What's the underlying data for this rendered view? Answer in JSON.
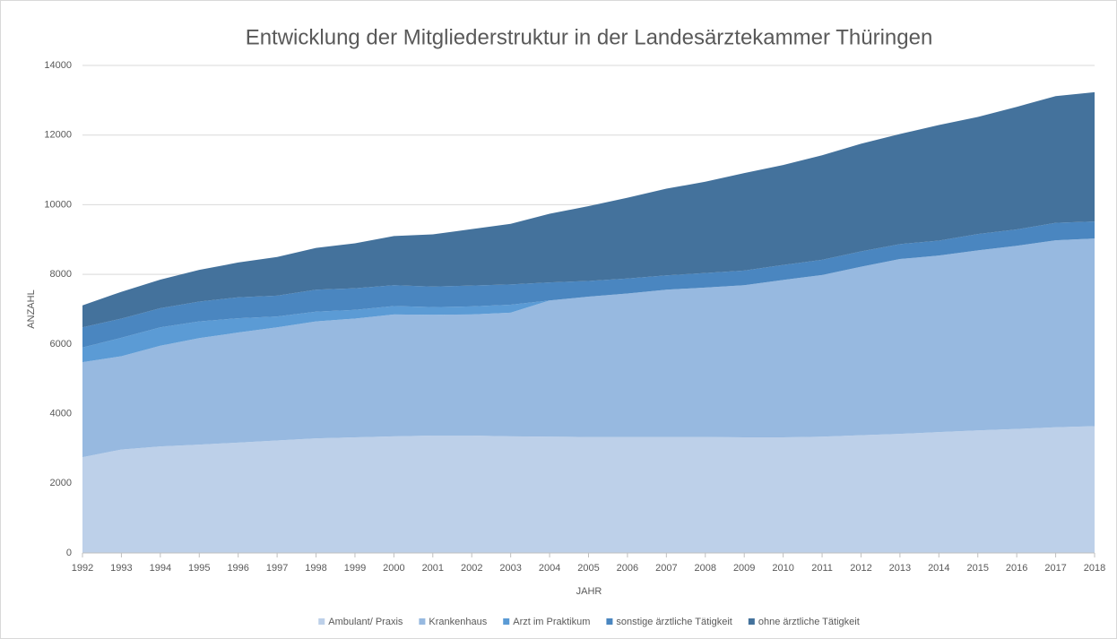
{
  "chart_data": {
    "type": "stacked-area",
    "title": "Entwicklung der Mitgliederstruktur in der Landesärztekammer Thüringen",
    "x_label": "JAHR",
    "y_label": "ANZAHL",
    "categories": [
      "1992",
      "1993",
      "1994",
      "1995",
      "1996",
      "1997",
      "1998",
      "1999",
      "2000",
      "2001",
      "2002",
      "2003",
      "2004",
      "2005",
      "2006",
      "2007",
      "2008",
      "2009",
      "2010",
      "2011",
      "2012",
      "2013",
      "2014",
      "2015",
      "2016",
      "2017",
      "2018"
    ],
    "series": [
      {
        "name": "Ambulant/ Praxis",
        "color": "#bdd0e9",
        "values": [
          2750,
          2970,
          3060,
          3110,
          3170,
          3230,
          3290,
          3320,
          3350,
          3370,
          3370,
          3350,
          3340,
          3330,
          3330,
          3330,
          3330,
          3320,
          3320,
          3340,
          3380,
          3420,
          3470,
          3520,
          3560,
          3610,
          3640
        ]
      },
      {
        "name": "Krankenhaus",
        "color": "#97b9e0",
        "values": [
          2730,
          2680,
          2890,
          3060,
          3160,
          3250,
          3360,
          3410,
          3500,
          3470,
          3480,
          3550,
          3910,
          4030,
          4120,
          4230,
          4290,
          4370,
          4520,
          4640,
          4840,
          5020,
          5070,
          5170,
          5260,
          5370,
          5390
        ]
      },
      {
        "name": "Arzt im Praktikum",
        "color": "#5b9bd5",
        "values": [
          420,
          530,
          530,
          480,
          410,
          310,
          280,
          250,
          240,
          220,
          230,
          230,
          0,
          0,
          0,
          0,
          0,
          0,
          0,
          0,
          0,
          0,
          0,
          0,
          0,
          0,
          0
        ]
      },
      {
        "name": "sonstige ärztliche Tätigkeit",
        "color": "#4a86c0",
        "values": [
          580,
          550,
          550,
          570,
          600,
          600,
          630,
          620,
          600,
          590,
          600,
          580,
          520,
          450,
          430,
          410,
          420,
          420,
          430,
          440,
          440,
          430,
          430,
          470,
          470,
          500,
          490
        ]
      },
      {
        "name": "ohne ärztliche Tätigkeit",
        "color": "#44729c",
        "values": [
          630,
          770,
          820,
          910,
          1000,
          1110,
          1200,
          1290,
          1410,
          1500,
          1620,
          1740,
          1970,
          2150,
          2320,
          2490,
          2620,
          2800,
          2870,
          3000,
          3090,
          3160,
          3320,
          3360,
          3520,
          3640,
          3710
        ]
      }
    ],
    "ylim": [
      0,
      14000
    ],
    "yticks": [
      0,
      2000,
      4000,
      6000,
      8000,
      10000,
      12000,
      14000
    ],
    "grid": true
  }
}
